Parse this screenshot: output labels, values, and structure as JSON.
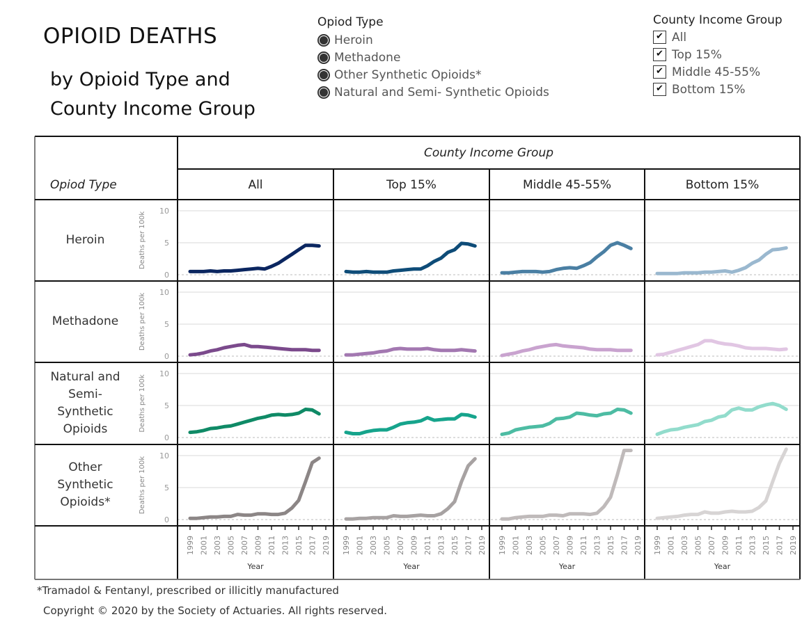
{
  "title": "OPIOID DEATHS",
  "subtitle": "by Opioid Type and County Income Group",
  "legend_opioid": {
    "title": "Opiod Type",
    "items": [
      "Heroin",
      "Methadone",
      "Other Synthetic Opioids*",
      "Natural and Semi- Synthetic Opioids"
    ]
  },
  "legend_income": {
    "title": "County Income Group",
    "items": [
      "All",
      "Top 15%",
      "Middle 45-55%",
      "Bottom 15%"
    ],
    "checkmark": "✔"
  },
  "table": {
    "column_group_title": "County Income Group",
    "row_group_title": "Opiod Type",
    "columns": [
      "All",
      "Top 15%",
      "Middle 45-55%",
      "Bottom 15%"
    ],
    "rows": [
      "Heroin",
      "Methadone",
      "Natural and Semi-Synthetic Opioids",
      "Other Synthetic Opioids*"
    ],
    "row_label_lines": [
      [
        "Heroin"
      ],
      [
        "Methadone"
      ],
      [
        "Natural and",
        "Semi-",
        "Synthetic",
        "Opioids"
      ],
      [
        "Other",
        "Synthetic",
        "Opioids*"
      ]
    ]
  },
  "chart_data": {
    "type": "line",
    "title": "OPIOID DEATHS by Opioid Type and County Income Group",
    "xlabel": "Year",
    "ylabel": "Deaths per 100k",
    "xlim": [
      1999,
      2019
    ],
    "ylim": [
      0,
      10
    ],
    "x_ticks": [
      1999,
      2001,
      2003,
      2005,
      2007,
      2009,
      2011,
      2013,
      2015,
      2017,
      2019
    ],
    "y_ticks": [
      0,
      5,
      10
    ],
    "grid": true,
    "x": [
      1999,
      2000,
      2001,
      2002,
      2003,
      2004,
      2005,
      2006,
      2007,
      2008,
      2009,
      2010,
      2011,
      2012,
      2013,
      2014,
      2015,
      2016,
      2017,
      2018
    ],
    "panels": [
      {
        "row": "Heroin",
        "series": [
          {
            "name": "All",
            "color": "#0b2660",
            "values": [
              0.5,
              0.5,
              0.5,
              0.6,
              0.5,
              0.6,
              0.6,
              0.7,
              0.8,
              0.9,
              1.0,
              0.9,
              1.3,
              1.8,
              2.5,
              3.2,
              3.9,
              4.6,
              4.6,
              4.5
            ]
          },
          {
            "name": "Top 15%",
            "color": "#0e4c78",
            "values": [
              0.5,
              0.4,
              0.4,
              0.5,
              0.4,
              0.4,
              0.4,
              0.6,
              0.7,
              0.8,
              0.9,
              0.9,
              1.4,
              2.1,
              2.6,
              3.5,
              3.9,
              4.9,
              4.8,
              4.5
            ]
          },
          {
            "name": "Middle 45-55%",
            "color": "#4a7fa3",
            "values": [
              0.3,
              0.3,
              0.4,
              0.5,
              0.5,
              0.5,
              0.4,
              0.5,
              0.8,
              1.0,
              1.1,
              1.0,
              1.4,
              1.9,
              2.8,
              3.6,
              4.6,
              5.0,
              4.6,
              4.1
            ]
          },
          {
            "name": "Bottom 15%",
            "color": "#9ab8cf",
            "values": [
              0.2,
              0.2,
              0.2,
              0.2,
              0.3,
              0.3,
              0.3,
              0.4,
              0.4,
              0.5,
              0.6,
              0.4,
              0.7,
              1.1,
              1.8,
              2.3,
              3.2,
              3.9,
              4.0,
              4.2
            ]
          }
        ]
      },
      {
        "row": "Methadone",
        "series": [
          {
            "name": "All",
            "color": "#7b4a8c",
            "values": [
              0.2,
              0.3,
              0.5,
              0.8,
              1.0,
              1.3,
              1.5,
              1.7,
              1.8,
              1.5,
              1.5,
              1.4,
              1.3,
              1.2,
              1.1,
              1.0,
              1.0,
              1.0,
              0.9,
              0.9
            ]
          },
          {
            "name": "Top 15%",
            "color": "#a378b1",
            "values": [
              0.2,
              0.2,
              0.3,
              0.4,
              0.5,
              0.7,
              0.8,
              1.1,
              1.2,
              1.1,
              1.1,
              1.1,
              1.2,
              1.0,
              0.9,
              0.9,
              0.9,
              1.0,
              0.9,
              0.8
            ]
          },
          {
            "name": "Middle 45-55%",
            "color": "#c9a3cf",
            "values": [
              0.1,
              0.3,
              0.5,
              0.8,
              1.0,
              1.3,
              1.5,
              1.7,
              1.8,
              1.6,
              1.5,
              1.4,
              1.3,
              1.1,
              1.0,
              1.0,
              1.0,
              0.9,
              0.9,
              0.9
            ]
          },
          {
            "name": "Bottom 15%",
            "color": "#e1c6e3",
            "values": [
              0.2,
              0.3,
              0.6,
              0.9,
              1.2,
              1.5,
              1.8,
              2.4,
              2.4,
              2.1,
              1.9,
              1.8,
              1.6,
              1.3,
              1.2,
              1.2,
              1.2,
              1.1,
              1.0,
              1.1
            ]
          }
        ]
      },
      {
        "row": "Natural and Semi-Synthetic Opioids",
        "series": [
          {
            "name": "All",
            "color": "#0f8a66",
            "values": [
              0.8,
              0.9,
              1.1,
              1.4,
              1.5,
              1.7,
              1.8,
              2.1,
              2.4,
              2.7,
              3.0,
              3.2,
              3.5,
              3.6,
              3.5,
              3.6,
              3.8,
              4.4,
              4.3,
              3.7
            ]
          },
          {
            "name": "Top 15%",
            "color": "#16a48c",
            "values": [
              0.8,
              0.6,
              0.6,
              0.9,
              1.1,
              1.2,
              1.2,
              1.6,
              2.1,
              2.3,
              2.4,
              2.6,
              3.1,
              2.7,
              2.8,
              2.9,
              2.9,
              3.6,
              3.5,
              3.2
            ]
          },
          {
            "name": "Middle 45-55%",
            "color": "#4dbca3",
            "values": [
              0.5,
              0.7,
              1.2,
              1.4,
              1.6,
              1.7,
              1.8,
              2.2,
              2.9,
              3.0,
              3.2,
              3.8,
              3.7,
              3.5,
              3.4,
              3.7,
              3.8,
              4.4,
              4.3,
              3.8
            ]
          },
          {
            "name": "Bottom 15%",
            "color": "#92dccc",
            "values": [
              0.5,
              0.9,
              1.2,
              1.3,
              1.6,
              1.8,
              2.0,
              2.5,
              2.7,
              3.2,
              3.4,
              4.3,
              4.6,
              4.3,
              4.3,
              4.8,
              5.1,
              5.3,
              5.0,
              4.4
            ]
          }
        ]
      },
      {
        "row": "Other Synthetic Opioids*",
        "series": [
          {
            "name": "All",
            "color": "#8c8686",
            "values": [
              0.2,
              0.2,
              0.3,
              0.4,
              0.4,
              0.5,
              0.5,
              0.8,
              0.7,
              0.7,
              0.9,
              0.9,
              0.8,
              0.8,
              1.0,
              1.8,
              3.0,
              5.9,
              8.9,
              9.6
            ]
          },
          {
            "name": "Top 15%",
            "color": "#a7a2a2",
            "values": [
              0.1,
              0.1,
              0.2,
              0.2,
              0.3,
              0.3,
              0.3,
              0.6,
              0.5,
              0.5,
              0.6,
              0.7,
              0.6,
              0.6,
              0.9,
              1.7,
              2.8,
              5.9,
              8.4,
              9.5
            ]
          },
          {
            "name": "Middle 45-55%",
            "color": "#bfbaba",
            "values": [
              0.1,
              0.1,
              0.3,
              0.4,
              0.5,
              0.5,
              0.5,
              0.7,
              0.7,
              0.6,
              0.9,
              0.9,
              0.9,
              0.8,
              1.0,
              2.0,
              3.5,
              7.0,
              10.8,
              10.8
            ]
          },
          {
            "name": "Bottom 15%",
            "color": "#d7d4d4",
            "values": [
              0.2,
              0.3,
              0.4,
              0.5,
              0.7,
              0.8,
              0.8,
              1.2,
              1.0,
              1.0,
              1.2,
              1.3,
              1.2,
              1.2,
              1.3,
              1.9,
              2.9,
              5.9,
              8.8,
              11.0
            ]
          }
        ]
      }
    ]
  },
  "footnote": "*Tramadol & Fentanyl, prescribed or illicitly manufactured",
  "copyright": "Copyright © 2020 by the Society of Actuaries. All rights reserved."
}
